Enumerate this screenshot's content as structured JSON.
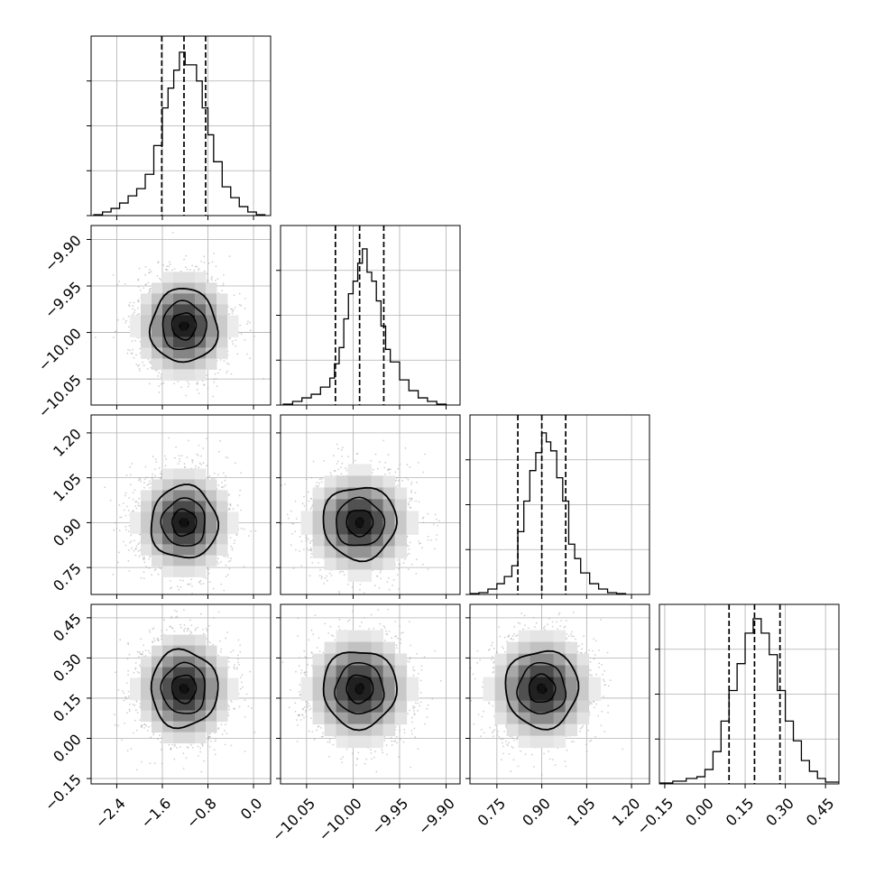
{
  "chart_data": {
    "type": "corner",
    "parameters": [
      {
        "ticks": [
          "-2.4",
          "-1.6",
          "-0.8",
          "0.0"
        ],
        "tick_values": [
          -2.4,
          -1.6,
          -0.8,
          0.0
        ],
        "range": [
          -2.85,
          0.3
        ],
        "quantiles": [
          -1.61,
          -1.22,
          -0.84
        ],
        "hist_bins": [
          [
            -2.8,
            -2.65,
            0.005
          ],
          [
            -2.65,
            -2.5,
            0.02
          ],
          [
            -2.5,
            -2.35,
            0.04
          ],
          [
            -2.35,
            -2.2,
            0.07
          ],
          [
            -2.2,
            -2.05,
            0.11
          ],
          [
            -2.05,
            -1.9,
            0.15
          ],
          [
            -1.9,
            -1.75,
            0.23
          ],
          [
            -1.75,
            -1.6,
            0.39
          ],
          [
            -1.6,
            -1.5,
            0.6
          ],
          [
            -1.5,
            -1.4,
            0.71
          ],
          [
            -1.4,
            -1.3,
            0.81
          ],
          [
            -1.3,
            -1.2,
            0.91
          ],
          [
            -1.2,
            -1.1,
            0.84
          ],
          [
            -1.1,
            -1.0,
            0.84
          ],
          [
            -1.0,
            -0.9,
            0.75
          ],
          [
            -0.9,
            -0.8,
            0.6
          ],
          [
            -0.8,
            -0.7,
            0.45
          ],
          [
            -0.7,
            -0.55,
            0.3
          ],
          [
            -0.55,
            -0.4,
            0.16
          ],
          [
            -0.4,
            -0.25,
            0.1
          ],
          [
            -0.25,
            -0.1,
            0.05
          ],
          [
            -0.1,
            0.05,
            0.02
          ],
          [
            0.05,
            0.2,
            0.005
          ]
        ]
      },
      {
        "ticks": [
          "-10.05",
          "-10.00",
          "-9.95",
          "-9.90"
        ],
        "tick_values": [
          -10.05,
          -10.0,
          -9.95,
          -9.9
        ],
        "range": [
          -10.078,
          -9.885
        ],
        "quantiles": [
          -10.019,
          -9.993,
          -9.967
        ],
        "hist_bins": [
          [
            -10.075,
            -10.065,
            0.005
          ],
          [
            -10.065,
            -10.055,
            0.02
          ],
          [
            -10.055,
            -10.045,
            0.04
          ],
          [
            -10.045,
            -10.035,
            0.06
          ],
          [
            -10.035,
            -10.025,
            0.1
          ],
          [
            -10.025,
            -10.02,
            0.15
          ],
          [
            -10.02,
            -10.015,
            0.23
          ],
          [
            -10.015,
            -10.01,
            0.32
          ],
          [
            -10.01,
            -10.005,
            0.48
          ],
          [
            -10.005,
            -10.0,
            0.62
          ],
          [
            -10.0,
            -9.995,
            0.69
          ],
          [
            -9.995,
            -9.99,
            0.79
          ],
          [
            -9.99,
            -9.985,
            0.87
          ],
          [
            -9.985,
            -9.98,
            0.74
          ],
          [
            -9.98,
            -9.975,
            0.69
          ],
          [
            -9.975,
            -9.97,
            0.58
          ],
          [
            -9.97,
            -9.965,
            0.44
          ],
          [
            -9.965,
            -9.96,
            0.31
          ],
          [
            -9.96,
            -9.95,
            0.24
          ],
          [
            -9.95,
            -9.94,
            0.14
          ],
          [
            -9.94,
            -9.93,
            0.08
          ],
          [
            -9.93,
            -9.92,
            0.04
          ],
          [
            -9.92,
            -9.91,
            0.02
          ],
          [
            -9.91,
            -9.9,
            0.005
          ]
        ]
      },
      {
        "ticks": [
          "0.75",
          "0.90",
          "1.05",
          "1.20"
        ],
        "tick_values": [
          0.75,
          0.9,
          1.05,
          1.2
        ],
        "range": [
          0.66,
          1.26
        ],
        "quantiles": [
          0.82,
          0.9,
          0.98
        ],
        "hist_bins": [
          [
            0.66,
            0.69,
            0.005
          ],
          [
            0.69,
            0.72,
            0.01
          ],
          [
            0.72,
            0.75,
            0.03
          ],
          [
            0.75,
            0.775,
            0.06
          ],
          [
            0.775,
            0.8,
            0.1
          ],
          [
            0.8,
            0.82,
            0.16
          ],
          [
            0.82,
            0.84,
            0.35
          ],
          [
            0.84,
            0.86,
            0.52
          ],
          [
            0.86,
            0.88,
            0.69
          ],
          [
            0.88,
            0.9,
            0.79
          ],
          [
            0.9,
            0.915,
            0.9
          ],
          [
            0.915,
            0.93,
            0.85
          ],
          [
            0.93,
            0.95,
            0.8
          ],
          [
            0.95,
            0.97,
            0.65
          ],
          [
            0.97,
            0.99,
            0.52
          ],
          [
            0.99,
            1.01,
            0.28
          ],
          [
            1.01,
            1.03,
            0.2
          ],
          [
            1.03,
            1.06,
            0.12
          ],
          [
            1.06,
            1.09,
            0.06
          ],
          [
            1.09,
            1.12,
            0.03
          ],
          [
            1.12,
            1.15,
            0.01
          ],
          [
            1.15,
            1.18,
            0.005
          ]
        ]
      },
      {
        "ticks": [
          "-0.15",
          "0.00",
          "0.15",
          "0.30",
          "0.45"
        ],
        "tick_values": [
          -0.15,
          0.0,
          0.15,
          0.3,
          0.45
        ],
        "range": [
          -0.17,
          0.5
        ],
        "quantiles": [
          0.09,
          0.185,
          0.28
        ],
        "hist_bins": [
          [
            -0.17,
            -0.12,
            0.005
          ],
          [
            -0.12,
            -0.07,
            0.015
          ],
          [
            -0.07,
            -0.03,
            0.03
          ],
          [
            -0.03,
            0.0,
            0.04
          ],
          [
            0.0,
            0.03,
            0.08
          ],
          [
            0.03,
            0.06,
            0.18
          ],
          [
            0.06,
            0.09,
            0.35
          ],
          [
            0.09,
            0.12,
            0.52
          ],
          [
            0.12,
            0.15,
            0.67
          ],
          [
            0.15,
            0.18,
            0.84
          ],
          [
            0.18,
            0.21,
            0.92
          ],
          [
            0.21,
            0.24,
            0.84
          ],
          [
            0.24,
            0.27,
            0.72
          ],
          [
            0.27,
            0.3,
            0.52
          ],
          [
            0.3,
            0.33,
            0.35
          ],
          [
            0.33,
            0.36,
            0.24
          ],
          [
            0.36,
            0.39,
            0.13
          ],
          [
            0.39,
            0.42,
            0.07
          ],
          [
            0.42,
            0.45,
            0.03
          ],
          [
            0.45,
            0.5,
            0.01
          ]
        ]
      }
    ],
    "correlation": "none",
    "grid": true,
    "colors": {
      "hist": "#000000",
      "quantile": "#000000",
      "scatter": "#aaaaaa",
      "contour": "#000000",
      "density_dark": "#111111",
      "density_light": "#ffffff"
    }
  }
}
